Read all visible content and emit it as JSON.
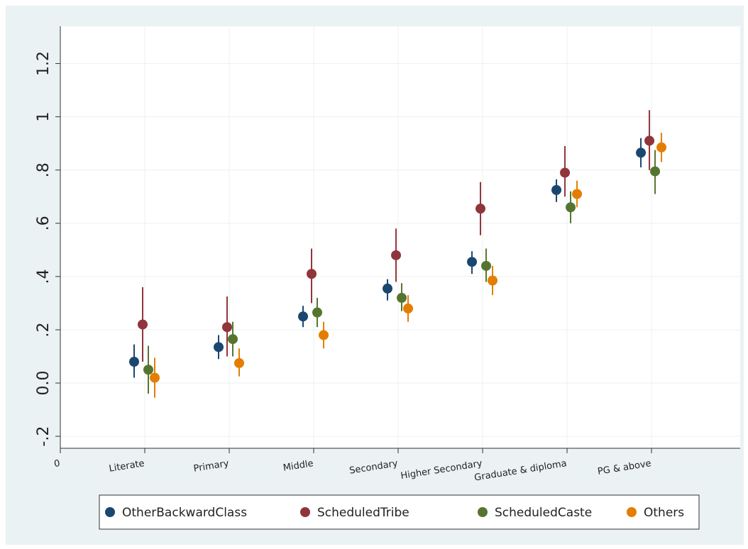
{
  "chart_data": {
    "type": "errorbar-scatter",
    "xticks": [
      0,
      {
        "value": 1,
        "label": "Literate"
      },
      {
        "value": 2,
        "label": "Primary"
      },
      {
        "value": 3,
        "label": "Middle"
      },
      {
        "value": 4,
        "label": "Secondary"
      },
      {
        "value": 5,
        "label": "Higher Secondary"
      },
      {
        "value": 6,
        "label": "Graduate & diploma"
      },
      {
        "value": 7,
        "label": "PG & above"
      }
    ],
    "xlim": [
      0,
      8.05
    ],
    "ylim": [
      -0.245,
      1.34
    ],
    "yticks": [
      {
        "value": -0.2,
        "label": "-.2"
      },
      {
        "value": 0,
        "label": "0.0"
      },
      {
        "value": 0.2,
        "label": ".2"
      },
      {
        "value": 0.4,
        "label": ".4"
      },
      {
        "value": 0.6,
        "label": ".6"
      },
      {
        "value": 0.8,
        "label": ".8"
      },
      1,
      1.2
    ],
    "grid": true,
    "legend": "bottom",
    "series": [
      {
        "name": "OtherBackwardClass",
        "color": "#1a476f",
        "values": [
          0.08,
          0.135,
          0.25,
          0.355,
          0.455,
          0.725,
          0.865
        ],
        "lower": [
          0.02,
          0.09,
          0.21,
          0.31,
          0.41,
          0.68,
          0.81
        ],
        "upper": [
          0.145,
          0.18,
          0.29,
          0.39,
          0.495,
          0.765,
          0.92
        ]
      },
      {
        "name": "ScheduledTribe",
        "color": "#90353b",
        "values": [
          0.22,
          0.21,
          0.41,
          0.48,
          0.655,
          0.79,
          0.91
        ],
        "lower": [
          0.08,
          0.1,
          0.3,
          0.38,
          0.555,
          0.7,
          0.8
        ],
        "upper": [
          0.36,
          0.325,
          0.505,
          0.58,
          0.755,
          0.89,
          1.025
        ]
      },
      {
        "name": "ScheduledCaste",
        "color": "#55752f",
        "values": [
          0.05,
          0.165,
          0.265,
          0.32,
          0.44,
          0.66,
          0.795
        ],
        "lower": [
          -0.04,
          0.1,
          0.21,
          0.27,
          0.38,
          0.6,
          0.71
        ],
        "upper": [
          0.14,
          0.23,
          0.32,
          0.375,
          0.505,
          0.72,
          0.875
        ]
      },
      {
        "name": "Others",
        "color": "#e37e00",
        "values": [
          0.02,
          0.075,
          0.18,
          0.28,
          0.385,
          0.71,
          0.885
        ],
        "lower": [
          -0.055,
          0.025,
          0.13,
          0.23,
          0.33,
          0.66,
          0.83
        ],
        "upper": [
          0.095,
          0.13,
          0.23,
          0.33,
          0.44,
          0.76,
          0.94
        ]
      }
    ]
  }
}
